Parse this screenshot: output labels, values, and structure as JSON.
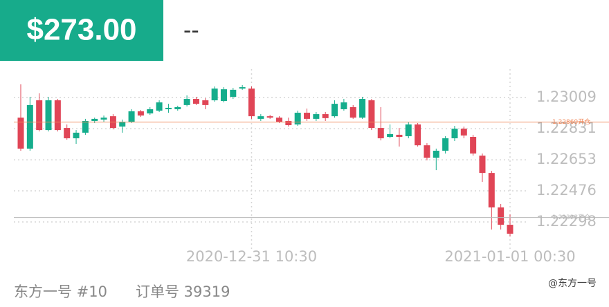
{
  "header": {
    "price": "$273.00",
    "change": "--"
  },
  "chart_data": {
    "type": "candlestick",
    "categories": [
      null,
      null,
      null,
      null,
      null,
      null,
      null,
      null,
      null,
      null,
      null,
      null,
      null,
      null,
      null,
      null,
      null,
      null,
      null,
      null,
      null,
      null,
      null,
      null,
      null,
      "2020-12-31 10:30",
      null,
      null,
      null,
      null,
      null,
      null,
      null,
      null,
      null,
      null,
      null,
      null,
      null,
      null,
      null,
      null,
      null,
      null,
      null,
      null,
      null,
      null,
      null,
      null,
      null,
      null,
      null,
      "2021-01-01 00:30"
    ],
    "open": [
      1.22894,
      1.22717,
      1.22993,
      1.22823,
      1.22993,
      1.22835,
      1.22776,
      1.22808,
      1.22875,
      1.22883,
      1.22902,
      1.22843,
      1.22871,
      1.2293,
      1.22918,
      1.22934,
      1.22942,
      1.22942,
      1.22966,
      1.23001,
      1.22993,
      1.22993,
      1.22989,
      1.23013,
      1.2306,
      1.2306,
      1.22887,
      1.22902,
      1.22894,
      1.22875,
      1.22855,
      1.22922,
      1.22887,
      1.22914,
      1.22902,
      1.22942,
      1.22954,
      1.22894,
      1.22993,
      1.22835,
      1.22784,
      1.22796,
      1.22788,
      1.22855,
      1.22736,
      1.22665,
      1.22705,
      1.22776,
      1.22831,
      1.22784,
      1.22677,
      1.22578,
      1.22381,
      1.22282
    ],
    "high": [
      1.23084,
      1.23013,
      1.23033,
      1.23013,
      1.23001,
      1.22855,
      1.22823,
      1.22887,
      1.22894,
      1.22906,
      1.22914,
      1.22883,
      1.22942,
      1.22938,
      1.22954,
      1.22993,
      1.22973,
      1.22962,
      1.23021,
      1.23013,
      1.23005,
      1.23072,
      1.23068,
      1.23064,
      1.2308,
      1.23072,
      1.22914,
      1.2291,
      1.22902,
      1.22894,
      1.22934,
      1.22946,
      1.22926,
      1.22926,
      1.22993,
      1.23001,
      1.22966,
      1.23013,
      1.23001,
      1.22954,
      1.22855,
      1.22835,
      1.22867,
      1.22863,
      1.22748,
      1.22717,
      1.22788,
      1.22847,
      1.22843,
      1.22796,
      1.22689,
      1.2259,
      1.22401,
      1.22341
    ],
    "low": [
      1.22705,
      1.22705,
      1.22815,
      1.22815,
      1.22815,
      1.22768,
      1.22744,
      1.22796,
      1.22863,
      1.22871,
      1.22827,
      1.22808,
      1.22863,
      1.22898,
      1.2291,
      1.22926,
      1.22922,
      1.22934,
      1.22958,
      1.22966,
      1.22942,
      1.22985,
      1.22981,
      1.23001,
      1.23053,
      1.22887,
      1.22875,
      1.22887,
      1.22863,
      1.22843,
      1.22847,
      1.22875,
      1.22875,
      1.22875,
      1.22894,
      1.22934,
      1.22887,
      1.22887,
      1.22823,
      1.22764,
      1.22776,
      1.22729,
      1.22776,
      1.22729,
      1.2265,
      1.22594,
      1.22689,
      1.2276,
      1.22776,
      1.22677,
      1.22527,
      1.22255,
      1.22255,
      1.22215
    ],
    "close": [
      1.22717,
      1.22966,
      1.22823,
      1.22993,
      1.22823,
      1.22776,
      1.22808,
      1.22875,
      1.22887,
      1.22894,
      1.22835,
      1.22871,
      1.2293,
      1.22906,
      1.22942,
      1.22981,
      1.2295,
      1.22954,
      1.23001,
      1.22973,
      1.22966,
      1.2306,
      1.23056,
      1.23053,
      1.23068,
      1.22902,
      1.22902,
      1.22894,
      1.22871,
      1.22851,
      1.22922,
      1.22887,
      1.22914,
      1.22891,
      1.22973,
      1.22981,
      1.22894,
      1.23001,
      1.22835,
      1.22776,
      1.228,
      1.22784,
      1.22855,
      1.22736,
      1.22665,
      1.22705,
      1.22776,
      1.22831,
      1.22792,
      1.22689,
      1.22578,
      1.22381,
      1.22282,
      1.22231
    ],
    "up_color": "#15ad8c",
    "down_color": "#e04556",
    "ylim": [
      1.22144,
      1.23171
    ],
    "yticks": [
      1.23009,
      1.22831,
      1.22653,
      1.22476,
      1.22298
    ],
    "grid": true,
    "price_lines": [
      {
        "value": 1.22869,
        "label": "1.22869开仓",
        "color": "#f08a5d"
      },
      {
        "value": 1.22323,
        "label": "1.22323平仓",
        "color": "#b8b8b8"
      }
    ]
  },
  "footer": {
    "account": "东方一号 #10",
    "order": "订单号 39319",
    "watermark": "@东方一号"
  }
}
